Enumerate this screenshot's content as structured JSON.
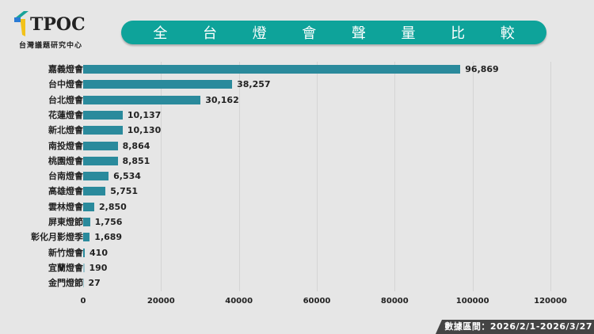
{
  "logo": {
    "text": "TPOC",
    "subtitle": "台灣議題研究中心",
    "colors": {
      "teal": "#1aa39a",
      "blue": "#2a7bd4",
      "yellow": "#f2c21a"
    }
  },
  "title": {
    "chars": [
      "全",
      "台",
      "燈",
      "會",
      "聲",
      "量",
      "比",
      "較"
    ],
    "full": "全台燈會聲量比較",
    "bg_color": "#0ea39a"
  },
  "footer": {
    "text": "數據區間：2026/2/1-2026/3/27"
  },
  "chart_data": {
    "type": "bar",
    "orientation": "horizontal",
    "title": "全台燈會聲量比較",
    "xlabel": "",
    "ylabel": "",
    "categories": [
      "嘉義燈會",
      "台中燈會",
      "台北燈會",
      "花蓮燈會",
      "新北燈會",
      "南投燈會",
      "桃園燈會",
      "台南燈會",
      "高雄燈會",
      "雲林燈會",
      "屏東燈節",
      "彰化月影燈季",
      "新竹燈會",
      "宜蘭燈會",
      "金門燈節"
    ],
    "values": [
      96869,
      38257,
      30162,
      10137,
      10130,
      8864,
      8851,
      6534,
      5751,
      2850,
      1756,
      1689,
      410,
      190,
      27
    ],
    "value_labels": [
      "96,869",
      "38,257",
      "30,162",
      "10,137",
      "10,130",
      "8,864",
      "8,851",
      "6,534",
      "5,751",
      "2,850",
      "1,756",
      "1,689",
      "410",
      "190",
      "27"
    ],
    "xlim": [
      0,
      120000
    ],
    "xticks": [
      "0",
      "20000",
      "40000",
      "60000",
      "80000",
      "100000",
      "120000"
    ],
    "grid": "vertical",
    "bar_color": "#2a8a9c",
    "legend": null
  }
}
